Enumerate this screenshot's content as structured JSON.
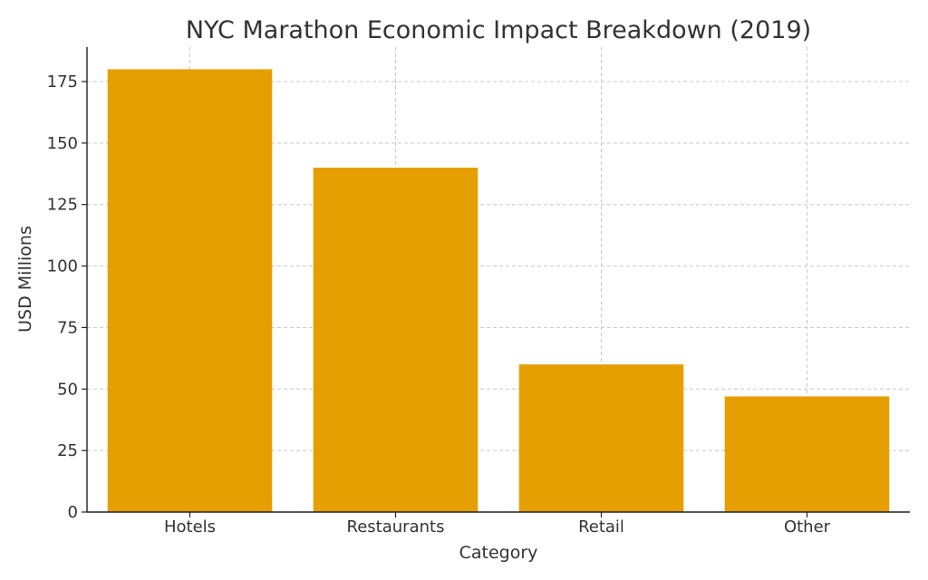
{
  "chart_data": {
    "type": "bar",
    "title": "NYC Marathon Economic Impact Breakdown (2019)",
    "xlabel": "Category",
    "ylabel": "USD Millions",
    "categories": [
      "Hotels",
      "Restaurants",
      "Retail",
      "Other"
    ],
    "values": [
      180,
      140,
      60,
      47
    ],
    "ylim": [
      0,
      189
    ],
    "yticks": [
      0,
      25,
      50,
      75,
      100,
      125,
      150,
      175
    ],
    "grid": true,
    "bar_color": "#E69F00"
  }
}
